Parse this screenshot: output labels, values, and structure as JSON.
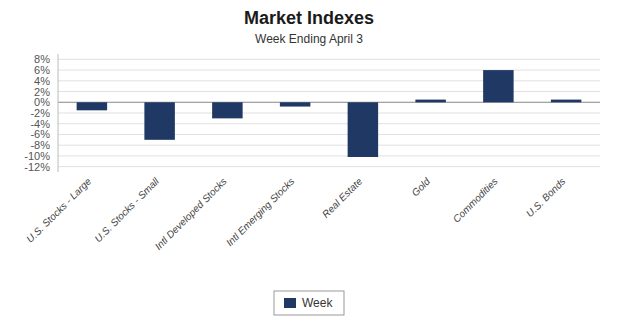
{
  "chart_data": {
    "type": "bar",
    "title": "Market Indexes",
    "subtitle": "Week Ending April 3",
    "categories": [
      "U.S. Stocks - Large",
      "U.S. Stocks - Small",
      "Intl Developed Stocks",
      "Intl Emerging Stocks",
      "Real Estate",
      "Gold",
      "Commodities",
      "U.S. Bonds"
    ],
    "series": [
      {
        "name": "Week",
        "color": "#1F3864",
        "values": [
          -1.5,
          -7.0,
          -3.0,
          -0.8,
          -10.2,
          0.5,
          6.0,
          0.5
        ]
      }
    ],
    "ylim": [
      -13,
      9
    ],
    "yticks": [
      {
        "value": -12,
        "label": "-12%"
      },
      {
        "value": -10,
        "label": "-10%"
      },
      {
        "value": -8,
        "label": "-8%"
      },
      {
        "value": -6,
        "label": "-6%"
      },
      {
        "value": -4,
        "label": "-4%"
      },
      {
        "value": -2,
        "label": "-2%"
      },
      {
        "value": 0,
        "label": "0%"
      },
      {
        "value": 2,
        "label": "2%"
      },
      {
        "value": 4,
        "label": "4%"
      },
      {
        "value": 6,
        "label": "6%"
      },
      {
        "value": 8,
        "label": "8%"
      }
    ],
    "grid": true,
    "legend": "bottom"
  }
}
